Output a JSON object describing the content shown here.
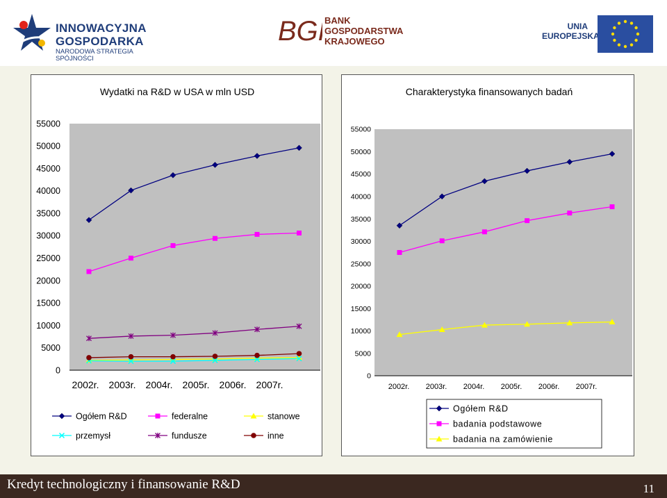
{
  "header": {
    "logo_left": {
      "line1": "INNOWACYJNA",
      "line2": "GOSPODARKA",
      "line3": "NARODOWA STRATEGIA SPÓJNOŚCI"
    },
    "logo_mid": {
      "line1": "BANK",
      "line2": "GOSPODARSTWA",
      "line3": "KRAJOWEGO"
    },
    "logo_right": {
      "line1": "UNIA",
      "line2": "EUROPEJSKA"
    }
  },
  "footer": {
    "title": "Kredyt technologiczny i finansowanie R&D",
    "page": "11"
  },
  "chart_data": [
    {
      "type": "line",
      "title": "Wydatki na R&D w USA w mln USD",
      "categories": [
        "2002r.",
        "2003r.",
        "2004r.",
        "2005r.",
        "2006r.",
        "2007r."
      ],
      "ylim": [
        0,
        55000
      ],
      "yticks": [
        "55000",
        "50000",
        "45000",
        "40000",
        "35000",
        "30000",
        "25000",
        "20000",
        "15000",
        "10000",
        "5000",
        "0"
      ],
      "grid": false,
      "legend_position": "bottom",
      "series": [
        {
          "name": "Ogółem R&D",
          "values": [
            33500,
            40100,
            43500,
            45800,
            47800,
            49600
          ],
          "color": "#000080",
          "marker": "diamond"
        },
        {
          "name": "federalne",
          "values": [
            22000,
            25000,
            27800,
            29400,
            30300,
            30600
          ],
          "color": "#ff00ff",
          "marker": "square"
        },
        {
          "name": "stanowe",
          "values": [
            2200,
            2300,
            2400,
            2500,
            2700,
            2800
          ],
          "color": "#ffff00",
          "marker": "triangle"
        },
        {
          "name": "przemysł",
          "values": [
            2100,
            2000,
            2000,
            2200,
            2400,
            2600
          ],
          "color": "#00ffff",
          "marker": "x"
        },
        {
          "name": "fundusze",
          "values": [
            7100,
            7600,
            7800,
            8300,
            9100,
            9800
          ],
          "color": "#800080",
          "marker": "star"
        },
        {
          "name": "inne",
          "values": [
            2800,
            3000,
            3000,
            3100,
            3300,
            3700
          ],
          "color": "#800000",
          "marker": "circle"
        }
      ]
    },
    {
      "type": "line",
      "title": "Charakterystyka finansowanych badań",
      "categories": [
        "2002r.",
        "2003r.",
        "2004r.",
        "2005r.",
        "2006r.",
        "2007r."
      ],
      "ylim": [
        0,
        55000
      ],
      "yticks": [
        "55000",
        "50000",
        "45000",
        "40000",
        "35000",
        "30000",
        "25000",
        "20000",
        "15000",
        "10000",
        "5000",
        "0"
      ],
      "grid": false,
      "legend_position": "bottom",
      "series": [
        {
          "name": "Ogółem R&D",
          "values": [
            33500,
            40000,
            43400,
            45700,
            47700,
            49500
          ],
          "color": "#000080",
          "marker": "diamond"
        },
        {
          "name": "badania podstawowe",
          "values": [
            27500,
            30100,
            32100,
            34600,
            36300,
            37700
          ],
          "color": "#ff00ff",
          "marker": "square"
        },
        {
          "name": "badania na zamówienie",
          "values": [
            9200,
            10300,
            11300,
            11500,
            11800,
            12000
          ],
          "color": "#ffff00",
          "marker": "triangle"
        }
      ]
    }
  ]
}
